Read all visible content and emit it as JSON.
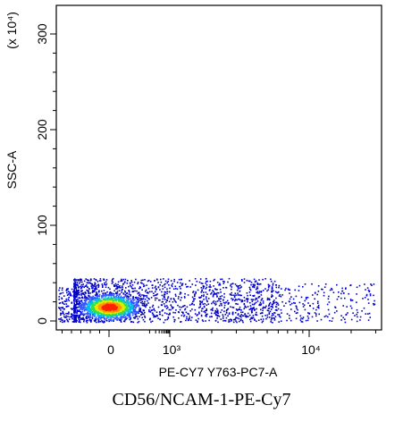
{
  "chart_data": {
    "type": "scatter",
    "subtype": "flow-cytometry-density-plot",
    "xlabel": "PE-CY7 Y763-PC7-A",
    "ylabel": "SSC-A",
    "y_multiplier_label": "(x 10⁴)",
    "x_scale": "biexponential",
    "y_scale": "linear",
    "ylim": [
      0,
      300
    ],
    "y_unit_multiplier": 10000,
    "y_ticks": [
      {
        "value": 0,
        "label": "0"
      },
      {
        "value": 100,
        "label": "100"
      },
      {
        "value": 200,
        "label": "200"
      },
      {
        "value": 300,
        "label": "300"
      }
    ],
    "x_ticks": [
      {
        "value": 0,
        "label": "0"
      },
      {
        "value": 1000,
        "label": "10³"
      },
      {
        "value": 10000,
        "label": "10⁴"
      }
    ],
    "population": {
      "density_peak": {
        "x": 0,
        "y": 15
      },
      "x_range_approx": [
        -600,
        40000
      ],
      "y_range_approx": [
        0,
        45
      ]
    },
    "density_colors": [
      "#0000cc",
      "#3355ff",
      "#00bbee",
      "#33dd55",
      "#ddee00",
      "#ff9900",
      "#ff2200"
    ],
    "grid": false
  },
  "caption": "CD56/NCAM-1-PE-Cy7"
}
